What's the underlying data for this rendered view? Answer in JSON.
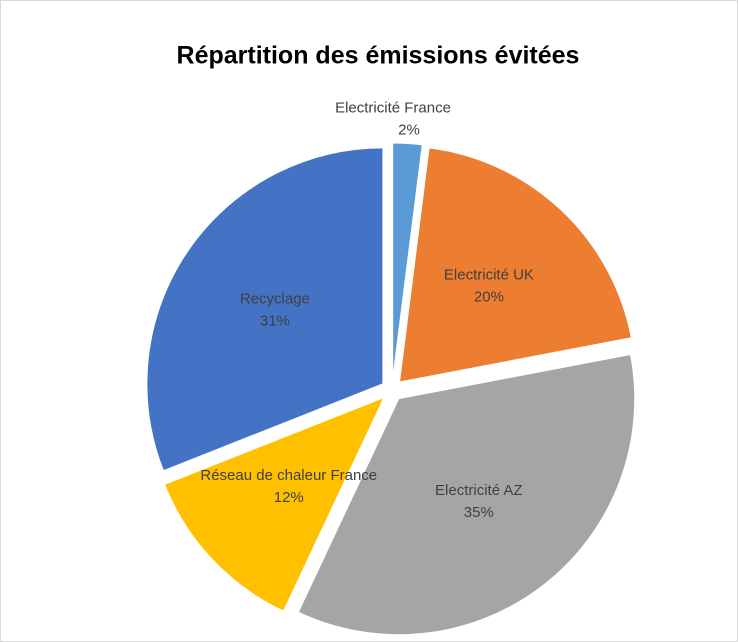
{
  "chart_data": {
    "type": "pie",
    "title": "Répartition des émissions évitées",
    "categories": [
      "Electricité France",
      "Electricité UK",
      "Electricité AZ",
      "Réseau de chaleur France",
      "Recyclage"
    ],
    "values": [
      2,
      20,
      35,
      12,
      31
    ],
    "value_labels": [
      "2%",
      "20%",
      "35%",
      "12%",
      "31%"
    ],
    "colors": [
      "#5b9bd5",
      "#ed7d31",
      "#a5a5a5",
      "#ffc000",
      "#4472c4"
    ]
  }
}
